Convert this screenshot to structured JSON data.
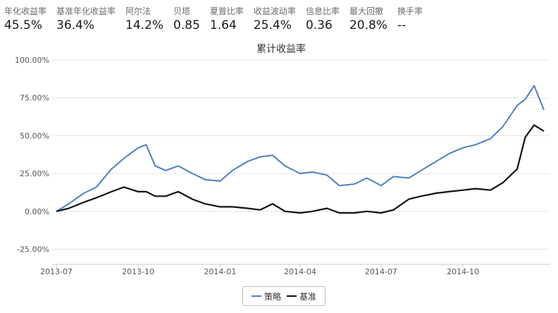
{
  "stats": [
    {
      "label": "年化收益率",
      "value": "45.5%"
    },
    {
      "label": "基准年化收益率",
      "value": "36.4%"
    },
    {
      "label": "阿尔法",
      "value": "14.2%"
    },
    {
      "label": "贝塔",
      "value": "0.85"
    },
    {
      "label": "夏普比率",
      "value": "1.64"
    },
    {
      "label": "收益波动率",
      "value": "25.4%"
    },
    {
      "label": "信息比率",
      "value": "0.36"
    },
    {
      "label": "最大回撤",
      "value": "20.8%"
    },
    {
      "label": "换手率",
      "value": "--"
    }
  ],
  "chart_data": {
    "type": "line",
    "title": "累计收益率",
    "xlabel": "",
    "ylabel": "",
    "x_ticks": [
      "2013-07",
      "2013-10",
      "2014-01",
      "2014-04",
      "2014-07",
      "2014-10"
    ],
    "y_ticks": [
      "100.00%",
      "75.00%",
      "50.00%",
      "25.00%",
      "0.00%",
      "-25.00%"
    ],
    "ylim": [
      -35,
      100
    ],
    "x": [
      "2013-07-01",
      "2013-07-15",
      "2013-08-01",
      "2013-08-15",
      "2013-09-01",
      "2013-09-15",
      "2013-10-01",
      "2013-10-10",
      "2013-10-20",
      "2013-11-01",
      "2013-11-15",
      "2013-12-01",
      "2013-12-15",
      "2014-01-01",
      "2014-01-15",
      "2014-02-01",
      "2014-02-15",
      "2014-03-01",
      "2014-03-15",
      "2014-04-01",
      "2014-04-15",
      "2014-05-01",
      "2014-05-15",
      "2014-06-01",
      "2014-06-15",
      "2014-07-01",
      "2014-07-15",
      "2014-08-01",
      "2014-08-15",
      "2014-09-01",
      "2014-09-15",
      "2014-10-01",
      "2014-10-15",
      "2014-11-01",
      "2014-11-15",
      "2014-12-01",
      "2014-12-10",
      "2014-12-20",
      "2014-12-31"
    ],
    "series": [
      {
        "name": "策略",
        "color": "#4d7fc2",
        "values": [
          0,
          5,
          12,
          16,
          28,
          35,
          42,
          44,
          30,
          27,
          30,
          25,
          21,
          20,
          27,
          33,
          36,
          37,
          30,
          25,
          26,
          24,
          17,
          18,
          22,
          17,
          23,
          22,
          27,
          33,
          38,
          42,
          44,
          48,
          56,
          70,
          74,
          83,
          67
        ]
      },
      {
        "name": "基准",
        "color": "#111111",
        "values": [
          0,
          2,
          6,
          9,
          13,
          16,
          13,
          13,
          10,
          10,
          13,
          8,
          5,
          3,
          3,
          2,
          1,
          5,
          0,
          -1,
          0,
          2,
          -1,
          -1,
          0,
          -1,
          1,
          8,
          10,
          12,
          13,
          14,
          15,
          14,
          19,
          28,
          49,
          57,
          53
        ]
      }
    ],
    "legend_position": "bottom-center",
    "grid": true
  }
}
